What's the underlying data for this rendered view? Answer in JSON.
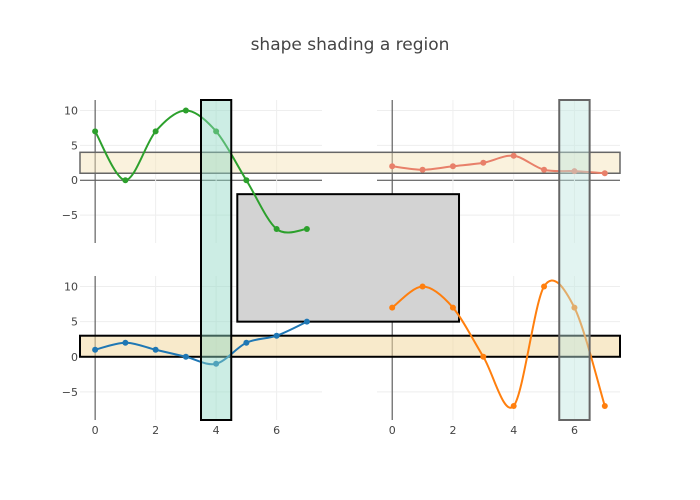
{
  "chart_data": {
    "type": "line",
    "title": "shape shading a region",
    "panels": [
      {
        "id": "top-left",
        "series": [
          {
            "color": "#2ca02c",
            "x": [
              0,
              1,
              2,
              3,
              4,
              5,
              6,
              7
            ],
            "y": [
              7,
              0,
              7,
              10,
              7,
              0,
              -7,
              -7
            ]
          }
        ],
        "x_range": [
          -0.5,
          7.5
        ],
        "y_range": [
          -9,
          11.5
        ],
        "y_ticks": [
          10,
          5,
          0,
          -5
        ],
        "x_ticks": []
      },
      {
        "id": "top-right",
        "series": [
          {
            "color": "#e8806a",
            "x": [
              0,
              1,
              2,
              3,
              4,
              5,
              6,
              7
            ],
            "y": [
              2,
              1.5,
              2,
              2.5,
              3.5,
              1.5,
              1.3,
              1
            ]
          }
        ],
        "x_range": [
          -0.5,
          7.5
        ],
        "y_range": [
          -9,
          11.5
        ],
        "y_ticks": [],
        "x_ticks": []
      },
      {
        "id": "bottom-left",
        "series": [
          {
            "color": "#1f77b4",
            "x": [
              0,
              1,
              2,
              3,
              4,
              5,
              6,
              7
            ],
            "y": [
              1,
              2,
              1,
              0,
              -1,
              2,
              3,
              5
            ]
          }
        ],
        "x_range": [
          -0.5,
          7.5
        ],
        "y_range": [
          -9,
          11.5
        ],
        "y_ticks": [
          10,
          5,
          0,
          -5
        ],
        "x_ticks": [
          0,
          2,
          4,
          6
        ]
      },
      {
        "id": "bottom-right",
        "series": [
          {
            "color": "#ff7f0e",
            "x": [
              0,
              1,
              2,
              3,
              4,
              5,
              6,
              7
            ],
            "y": [
              7,
              10,
              7,
              0,
              -7,
              10,
              7,
              -7
            ]
          }
        ],
        "x_range": [
          -0.5,
          7.5
        ],
        "y_range": [
          -9,
          11.5
        ],
        "y_ticks": [],
        "x_ticks": [
          0,
          2,
          4,
          6
        ]
      }
    ],
    "shapes": [
      {
        "name": "vertical-band-left",
        "panel_x": "left",
        "x0": 3.5,
        "x1": 4.5,
        "y_span": "both-rows",
        "fill": "#8fd7c3",
        "opacity": 0.45,
        "stroke": "#000000",
        "stroke_width": 2
      },
      {
        "name": "vertical-band-right",
        "panel_x": "right",
        "x0": 5.5,
        "x1": 6.5,
        "y_span": "both-rows",
        "fill": "#bfe6df",
        "opacity": 0.45,
        "stroke": "#666666",
        "stroke_width": 2
      },
      {
        "name": "horizontal-band-top",
        "y0": 1,
        "y1": 4,
        "row": "top",
        "x_span": "full",
        "fill": "#f3e2b3",
        "opacity": 0.45,
        "stroke": "#666666",
        "stroke_width": 1.5
      },
      {
        "name": "horizontal-band-bottom",
        "y0": 0,
        "y1": 3,
        "row": "bottom",
        "x_span": "full",
        "fill": "#f3d8a0",
        "opacity": 0.55,
        "stroke": "#000000",
        "stroke_width": 2
      },
      {
        "name": "central-gray-box",
        "fill": "#d3d3d3",
        "opacity": 1,
        "stroke": "#000000",
        "stroke_width": 2
      }
    ]
  }
}
